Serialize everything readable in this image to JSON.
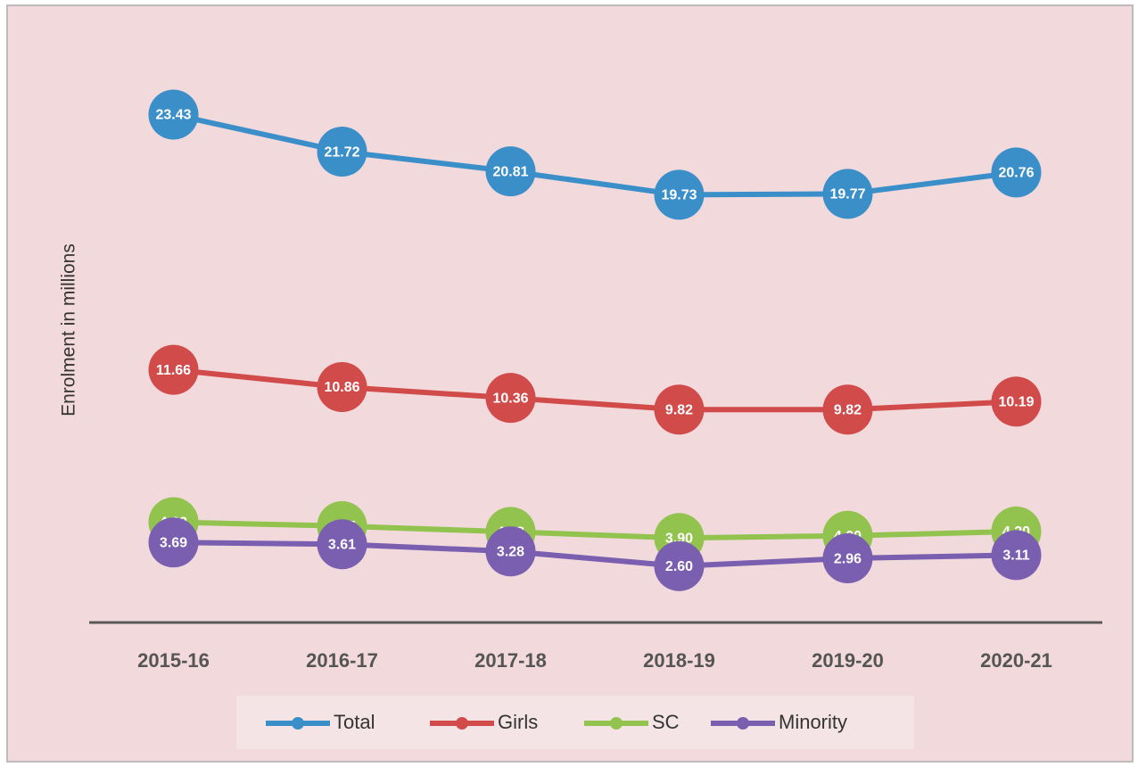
{
  "chart_data": {
    "type": "line",
    "y_label": "Enrolment in millions",
    "categories": [
      "2015-16",
      "2016-17",
      "2017-18",
      "2018-19",
      "2019-20",
      "2020-21"
    ],
    "ylim": [
      0,
      26
    ],
    "series": [
      {
        "name": "Total",
        "color": "#3b8fc9",
        "values": [
          23.43,
          21.72,
          20.81,
          19.73,
          19.77,
          20.76
        ],
        "value_labels": [
          "23.43",
          "21.72",
          "20.81",
          "19.73",
          "19.77",
          "20.76"
        ]
      },
      {
        "name": "Girls",
        "color": "#d14b4b",
        "values": [
          11.66,
          10.86,
          10.36,
          9.82,
          9.82,
          10.19
        ],
        "value_labels": [
          "11.66",
          "10.86",
          "10.36",
          "9.82",
          "9.82",
          "10.19"
        ]
      },
      {
        "name": "SC",
        "color": "#93c34f",
        "values": [
          4.63,
          4.45,
          4.18,
          3.9,
          4.0,
          4.2
        ],
        "value_labels": [
          "4.63",
          "4.45",
          "4.18",
          "3.90",
          "4.00",
          "4.20"
        ]
      },
      {
        "name": "Minority",
        "color": "#7a5eb0",
        "values": [
          3.69,
          3.61,
          3.28,
          2.6,
          2.96,
          3.11
        ],
        "value_labels": [
          "3.69",
          "3.61",
          "3.28",
          "2.60",
          "2.96",
          "3.11"
        ]
      }
    ]
  }
}
